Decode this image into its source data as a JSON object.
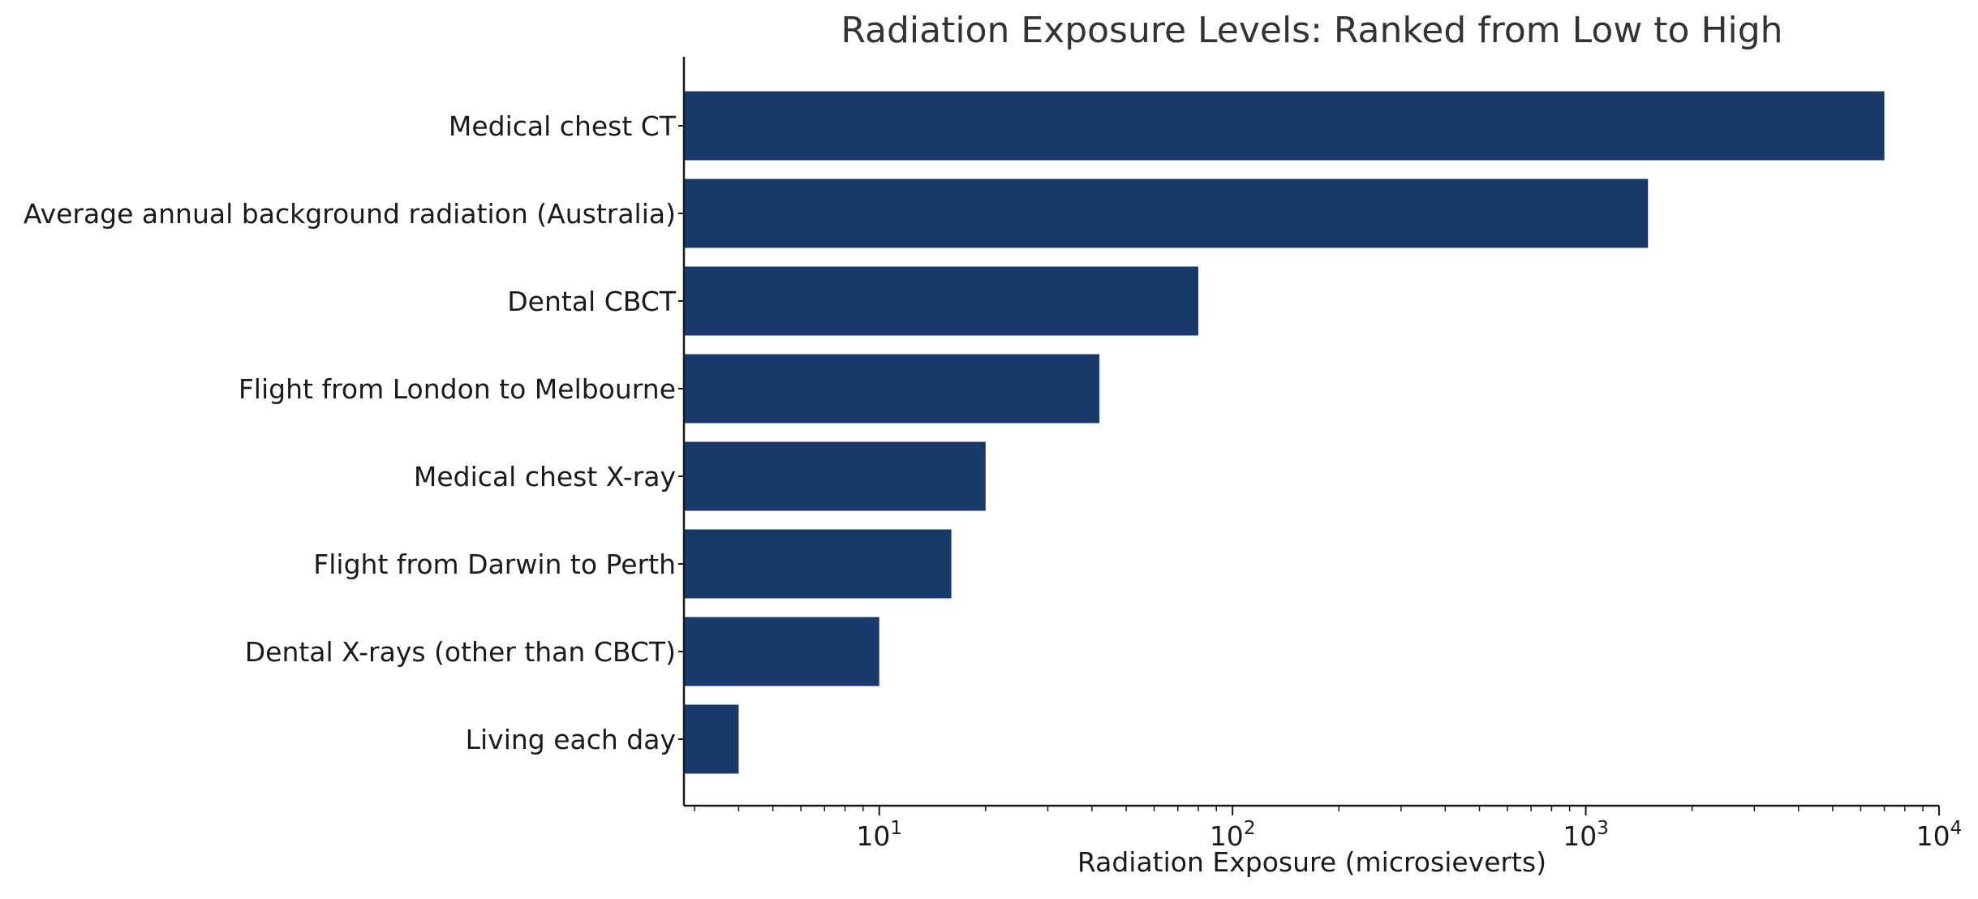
{
  "colors": {
    "bar": "#1a396b",
    "axis": "#1a1a1a",
    "text": "#1a1a1a",
    "title": "#333333"
  },
  "chart_data": {
    "type": "bar",
    "orientation": "horizontal",
    "title": "Radiation Exposure Levels: Ranked from Low to High",
    "xlabel": "Radiation Exposure (microsieverts)",
    "ylabel": "",
    "xscale": "log",
    "xlim": [
      2.8,
      10000
    ],
    "grid": false,
    "categories": [
      "Medical chest CT",
      "Average annual background radiation (Australia)",
      "Dental CBCT",
      "Flight from London to Melbourne",
      "Medical chest X-ray",
      "Flight from Darwin to Perth",
      "Dental X-rays (other than CBCT)",
      "Living each day"
    ],
    "values": [
      7000,
      1500,
      80,
      42,
      20,
      16,
      10,
      4
    ],
    "xticks": [
      {
        "base": "10",
        "exp": "1",
        "value": 10
      },
      {
        "base": "10",
        "exp": "2",
        "value": 100
      },
      {
        "base": "10",
        "exp": "3",
        "value": 1000
      },
      {
        "base": "10",
        "exp": "4",
        "value": 10000
      }
    ]
  }
}
